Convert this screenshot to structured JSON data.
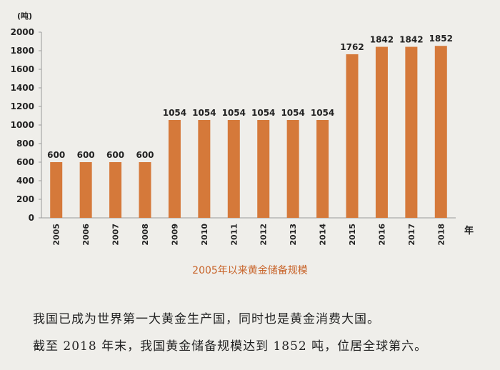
{
  "chart_data": {
    "type": "bar",
    "unit_label": "(吨)",
    "x_unit": "年",
    "categories": [
      "2005",
      "2006",
      "2007",
      "2008",
      "2009",
      "2010",
      "2011",
      "2012",
      "2013",
      "2014",
      "2015",
      "2016",
      "2017",
      "2018"
    ],
    "values": [
      600,
      600,
      600,
      600,
      1054,
      1054,
      1054,
      1054,
      1054,
      1054,
      1762,
      1842,
      1842,
      1852
    ],
    "ylim": [
      0,
      2000
    ],
    "yticks": [
      0,
      200,
      400,
      600,
      800,
      1000,
      1200,
      1400,
      1600,
      1800,
      2000
    ],
    "bar_color": "#d5793a",
    "caption": "2005年以来黄金储备规模",
    "grid": false
  },
  "text": {
    "line1": "我国已成为世界第一大黄金生产国，同时也是黄金消费大国。",
    "line2": "截至 2018 年末，我国黄金储备规模达到 1852 吨，位居全球第六。"
  },
  "colors": {
    "background": "#efeeea",
    "caption": "#c8642a"
  }
}
